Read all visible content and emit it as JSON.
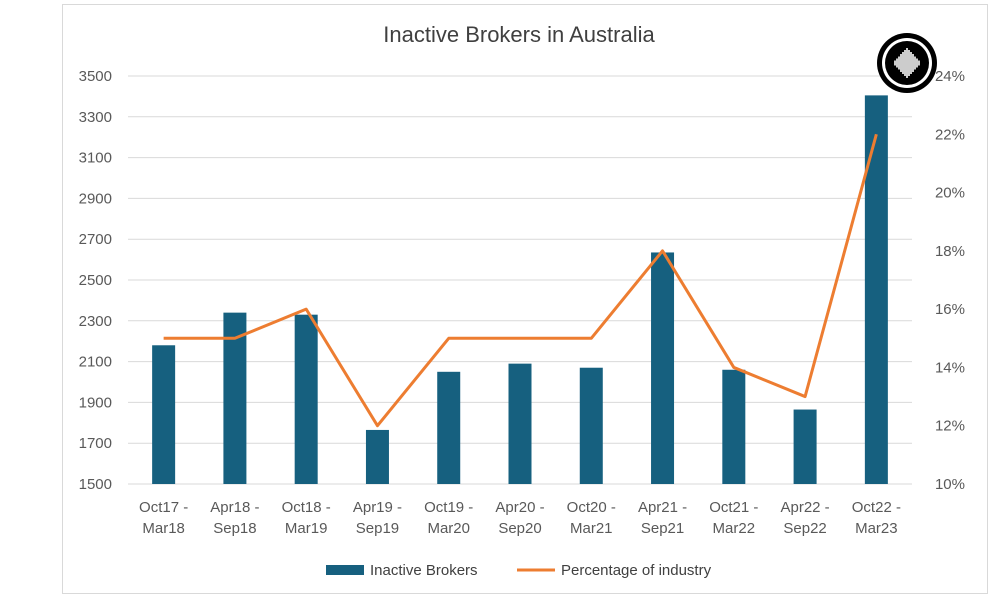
{
  "chart_data": {
    "type": "bar",
    "title": "Inactive Brokers in Australia",
    "categories": [
      [
        "Oct17 -",
        "Mar18"
      ],
      [
        "Apr18 -",
        "Sep18"
      ],
      [
        "Oct18 -",
        "Mar19"
      ],
      [
        "Apr19 -",
        "Sep19"
      ],
      [
        "Oct19 -",
        "Mar20"
      ],
      [
        "Apr20 -",
        "Sep20"
      ],
      [
        "Oct20 -",
        "Mar21"
      ],
      [
        "Apr21 -",
        "Sep21"
      ],
      [
        "Oct21 -",
        "Mar22"
      ],
      [
        "Apr22 -",
        "Sep22"
      ],
      [
        "Oct22 -",
        "Mar23"
      ]
    ],
    "series": [
      {
        "name": "Inactive Brokers",
        "type": "bar",
        "axis": "left",
        "color": "#16607f",
        "values": [
          2180,
          2340,
          2330,
          1765,
          2050,
          2090,
          2070,
          2635,
          2060,
          1865,
          3405
        ]
      },
      {
        "name": "Percentage of industry",
        "type": "line",
        "axis": "right",
        "color": "#ed7d31",
        "values": [
          15,
          15,
          16,
          12,
          15,
          15,
          15,
          18,
          14,
          13,
          22
        ]
      }
    ],
    "y_left": {
      "min": 1500,
      "max": 3500,
      "ticks": [
        "1500",
        "1700",
        "1900",
        "2100",
        "2300",
        "2500",
        "2700",
        "2900",
        "3100",
        "3300",
        "3500"
      ]
    },
    "y_right": {
      "min": 10,
      "max": 24,
      "ticks": [
        "10%",
        "12%",
        "14%",
        "16%",
        "18%",
        "20%",
        "22%",
        "24%"
      ]
    },
    "grid": true,
    "legend": "bottom"
  }
}
